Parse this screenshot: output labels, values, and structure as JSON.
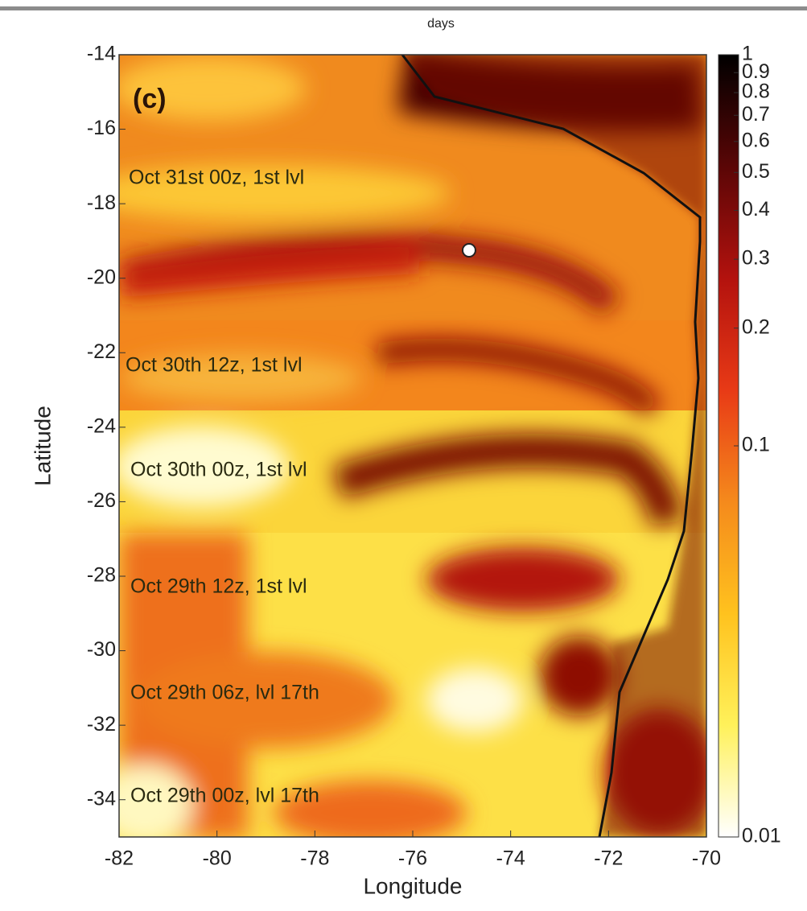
{
  "chart_data": {
    "type": "heatmap",
    "colorbar_label": "days",
    "panel_label": "(c)",
    "xlabel": "Longitude",
    "ylabel": "Latitude",
    "xlim": [
      -82,
      -70
    ],
    "xticks": [
      -82,
      -80,
      -78,
      -76,
      -74,
      -72,
      -70
    ],
    "ylim": [
      -35,
      -14
    ],
    "yticks": [
      -14,
      -16,
      -18,
      -20,
      -22,
      -24,
      -26,
      -28,
      -30,
      -32,
      -34
    ],
    "clim": [
      0.01,
      1
    ],
    "clog": true,
    "cticks": [
      0.01,
      0.1,
      0.2,
      0.3,
      0.4,
      0.5,
      0.6,
      0.7,
      0.8,
      0.9,
      1
    ],
    "colormap": [
      "#ffffff",
      "#fff15a",
      "#ffc21e",
      "#f58a1c",
      "#e83a16",
      "#b3120e",
      "#5a0606",
      "#000000"
    ],
    "annotations": [
      "Oct 31st 00z, 1st lvl",
      "Oct 30th 12z, 1st lvl",
      "Oct 30th 00z, 1st lvl",
      "Oct 29th 12z, 1st lvl",
      "Oct 29th 06z, lvl 17th",
      "Oct 29th 00z, lvl 17th"
    ],
    "point": {
      "x": -74.85,
      "y": -19.25
    }
  }
}
